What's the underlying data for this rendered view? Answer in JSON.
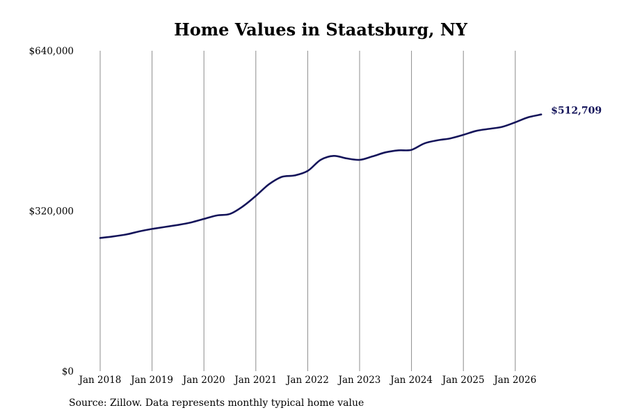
{
  "chart_data": {
    "type": "line",
    "title": "Home Values in Staatsburg, NY",
    "xlabel": "",
    "ylabel": "",
    "x_ticks": [
      "Jan 2018",
      "Jan 2019",
      "Jan 2020",
      "Jan 2021",
      "Jan 2022",
      "Jan 2023",
      "Jan 2024",
      "Jan 2025",
      "Jan 2026"
    ],
    "y_ticks": [
      "$0",
      "$320,000",
      "$640,000"
    ],
    "ylim": [
      0,
      640000
    ],
    "xlim": [
      "2018-01",
      "2026-09"
    ],
    "grid": "vertical",
    "series": [
      {
        "color": "#14145a",
        "points": [
          [
            "2018-01",
            266000
          ],
          [
            "2018-04",
            269000
          ],
          [
            "2018-07",
            273000
          ],
          [
            "2018-10",
            279000
          ],
          [
            "2019-01",
            284000
          ],
          [
            "2019-04",
            288000
          ],
          [
            "2019-07",
            292000
          ],
          [
            "2019-10",
            297000
          ],
          [
            "2020-01",
            304000
          ],
          [
            "2020-04",
            311000
          ],
          [
            "2020-07",
            314000
          ],
          [
            "2020-10",
            329000
          ],
          [
            "2021-01",
            350000
          ],
          [
            "2021-04",
            373000
          ],
          [
            "2021-07",
            388000
          ],
          [
            "2021-10",
            391000
          ],
          [
            "2022-01",
            400000
          ],
          [
            "2022-04",
            422000
          ],
          [
            "2022-07",
            430000
          ],
          [
            "2022-10",
            425000
          ],
          [
            "2023-01",
            422000
          ],
          [
            "2023-04",
            429000
          ],
          [
            "2023-07",
            437000
          ],
          [
            "2023-10",
            441000
          ],
          [
            "2024-01",
            442000
          ],
          [
            "2024-04",
            455000
          ],
          [
            "2024-07",
            461000
          ],
          [
            "2024-10",
            465000
          ],
          [
            "2025-01",
            472000
          ],
          [
            "2025-04",
            480000
          ],
          [
            "2025-07",
            484000
          ],
          [
            "2025-10",
            488000
          ],
          [
            "2026-01",
            497000
          ],
          [
            "2026-04",
            507000
          ],
          [
            "2026-07",
            512709
          ]
        ]
      }
    ],
    "end_label": "$512,709"
  },
  "source": "Source: Zillow. Data represents monthly typical home value"
}
